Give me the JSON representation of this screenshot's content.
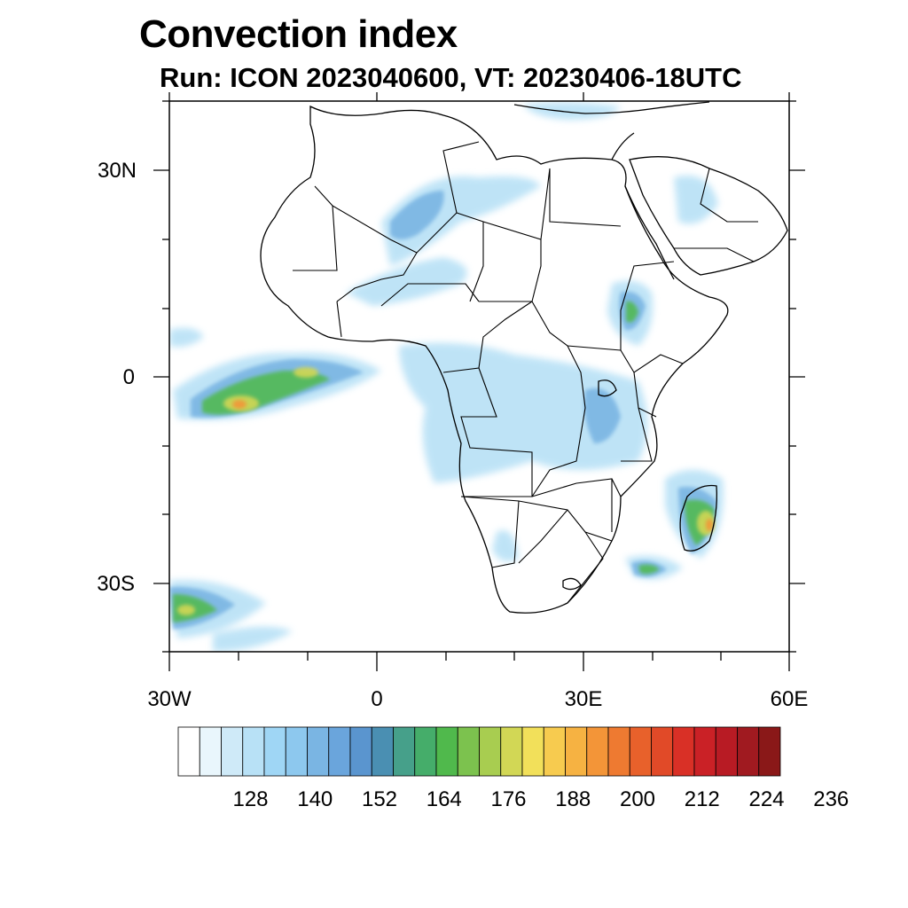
{
  "title": "Convection index",
  "subtitle": "Run: ICON 2023040600,  VT: 20230406-18UTC",
  "map": {
    "region": "Africa",
    "lon_range": [
      -30,
      60
    ],
    "lat_range": [
      -40,
      40
    ],
    "y_ticks": [
      {
        "label": "30N",
        "lat": 30
      },
      {
        "label": "0",
        "lat": 0
      },
      {
        "label": "30S",
        "lat": -30
      }
    ],
    "x_ticks": [
      {
        "label": "30W",
        "lon": -30
      },
      {
        "label": "0",
        "lon": 0
      },
      {
        "label": "30E",
        "lon": 30
      },
      {
        "label": "60E",
        "lon": 60
      }
    ],
    "hotspots": [
      {
        "name": "tropical-atlantic",
        "lon": -20,
        "lat": -3,
        "max": 200
      },
      {
        "name": "madagascar",
        "lon": 47,
        "lat": -21,
        "max": 205
      },
      {
        "name": "south-atlantic-front",
        "lon": -27,
        "lat": -34,
        "max": 185
      },
      {
        "name": "ethiopian-highlands",
        "lon": 37,
        "lat": 8,
        "max": 170
      },
      {
        "name": "east-africa",
        "lon": 33,
        "lat": -5,
        "max": 165
      }
    ]
  },
  "colorbar": {
    "colors": [
      "#ffffff",
      "#e9f6fc",
      "#cfeaf8",
      "#b8e1f6",
      "#9fd6f5",
      "#8dc8ee",
      "#7ab5e3",
      "#6aa5dc",
      "#5a95cf",
      "#4a8fb2",
      "#46a08a",
      "#45ad6a",
      "#50b94c",
      "#7cc24e",
      "#a8cd50",
      "#d2d755",
      "#f2e05a",
      "#f7cb4f",
      "#f6b242",
      "#f39538",
      "#ee7a31",
      "#e8612b",
      "#e14a28",
      "#d93026",
      "#ca2126",
      "#b81b24",
      "#a01a20",
      "#8a1818"
    ],
    "labels": [
      "128",
      "140",
      "152",
      "164",
      "176",
      "188",
      "200",
      "212",
      "224",
      "236"
    ]
  }
}
